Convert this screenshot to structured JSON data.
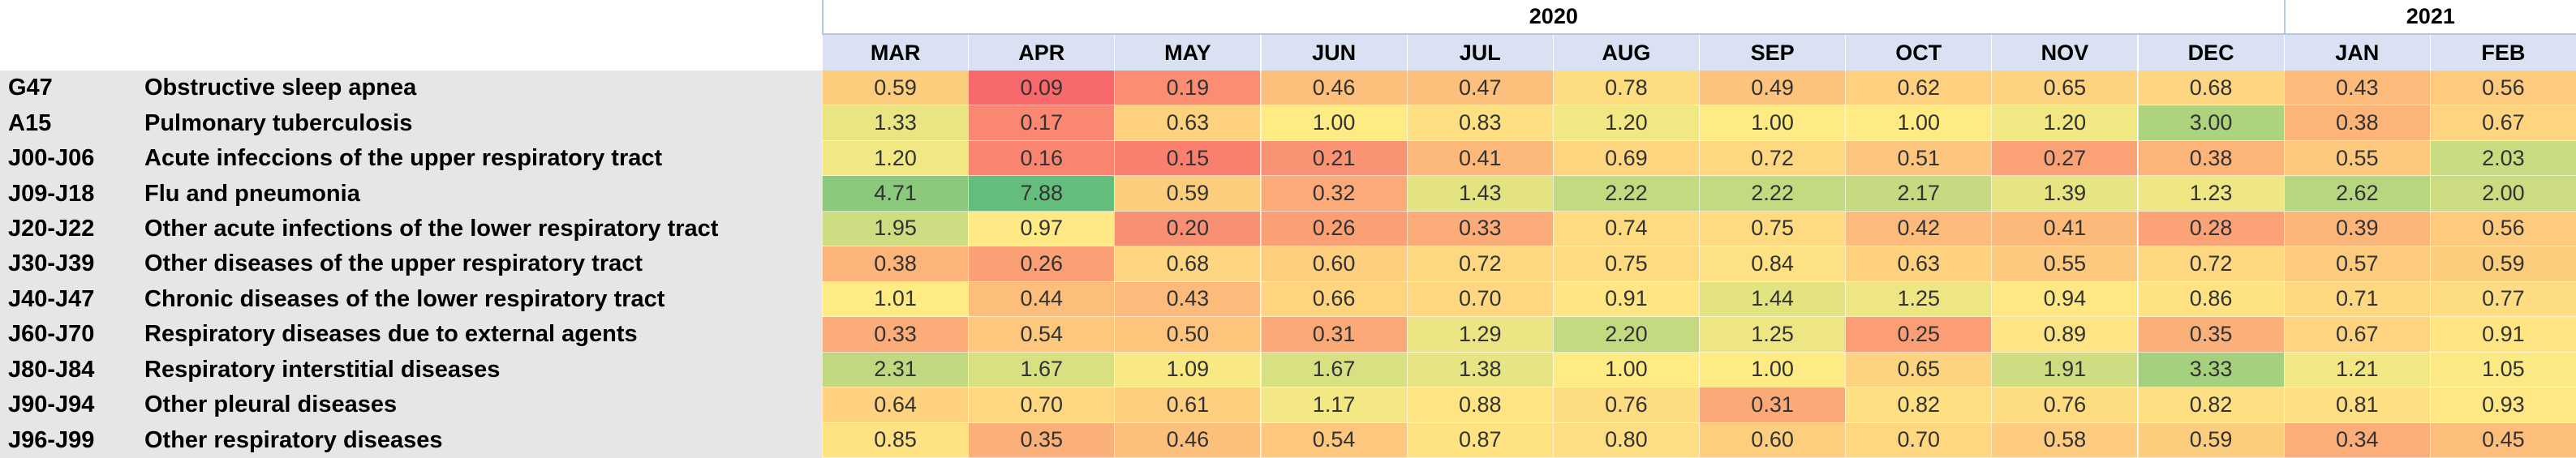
{
  "years": [
    "2020",
    "2021"
  ],
  "months": [
    "MAR",
    "APR",
    "MAY",
    "JUN",
    "JUL",
    "AUG",
    "SEP",
    "OCT",
    "NOV",
    "DEC",
    "JAN",
    "FEB"
  ],
  "rows": [
    {
      "code": "G47",
      "name": "Obstructive sleep apnea",
      "values": [
        "0.59",
        "0.09",
        "0.19",
        "0.46",
        "0.47",
        "0.78",
        "0.49",
        "0.62",
        "0.65",
        "0.68",
        "0.43",
        "0.56"
      ]
    },
    {
      "code": "A15",
      "name": "Pulmonary tuberculosis",
      "values": [
        "1.33",
        "0.17",
        "0.63",
        "1.00",
        "0.83",
        "1.20",
        "1.00",
        "1.00",
        "1.20",
        "3.00",
        "0.38",
        "0.67"
      ]
    },
    {
      "code": "J00-J06",
      "name": "Acute infeccions of the upper respiratory tract",
      "values": [
        "1.20",
        "0.16",
        "0.15",
        "0.21",
        "0.41",
        "0.69",
        "0.72",
        "0.51",
        "0.27",
        "0.38",
        "0.55",
        "2.03"
      ]
    },
    {
      "code": "J09-J18",
      "name": "Flu and pneumonia",
      "values": [
        "4.71",
        "7.88",
        "0.59",
        "0.32",
        "1.43",
        "2.22",
        "2.22",
        "2.17",
        "1.39",
        "1.23",
        "2.62",
        "2.00"
      ]
    },
    {
      "code": "J20-J22",
      "name": "Other acute infections of the lower respiratory tract",
      "values": [
        "1.95",
        "0.97",
        "0.20",
        "0.26",
        "0.33",
        "0.74",
        "0.75",
        "0.42",
        "0.41",
        "0.28",
        "0.39",
        "0.56"
      ]
    },
    {
      "code": "J30-J39",
      "name": "Other diseases of the upper respiratory tract",
      "values": [
        "0.38",
        "0.26",
        "0.68",
        "0.60",
        "0.72",
        "0.75",
        "0.84",
        "0.63",
        "0.55",
        "0.72",
        "0.57",
        "0.59"
      ]
    },
    {
      "code": "J40-J47",
      "name": "Chronic diseases of the lower respiratory tract",
      "values": [
        "1.01",
        "0.44",
        "0.43",
        "0.66",
        "0.70",
        "0.91",
        "1.44",
        "1.25",
        "0.94",
        "0.86",
        "0.71",
        "0.77"
      ]
    },
    {
      "code": "J60-J70",
      "name": "Respiratory diseases due to external agents",
      "values": [
        "0.33",
        "0.54",
        "0.50",
        "0.31",
        "1.29",
        "2.20",
        "1.25",
        "0.25",
        "0.89",
        "0.35",
        "0.67",
        "0.91"
      ]
    },
    {
      "code": "J80-J84",
      "name": "Respiratory interstitial diseases",
      "values": [
        "2.31",
        "1.67",
        "1.09",
        "1.67",
        "1.38",
        "1.00",
        "1.00",
        "0.65",
        "1.91",
        "3.33",
        "1.21",
        "1.05"
      ]
    },
    {
      "code": "J90-J94",
      "name": "Other pleural diseases",
      "values": [
        "0.64",
        "0.70",
        "0.61",
        "1.17",
        "0.88",
        "0.76",
        "0.31",
        "0.82",
        "0.76",
        "0.82",
        "0.81",
        "0.93"
      ]
    },
    {
      "code": "J96-J99",
      "name": "Other respiratory diseases",
      "values": [
        "0.85",
        "0.35",
        "0.46",
        "0.54",
        "0.87",
        "0.80",
        "0.60",
        "0.70",
        "0.58",
        "0.59",
        "0.34",
        "0.45"
      ]
    }
  ]
}
